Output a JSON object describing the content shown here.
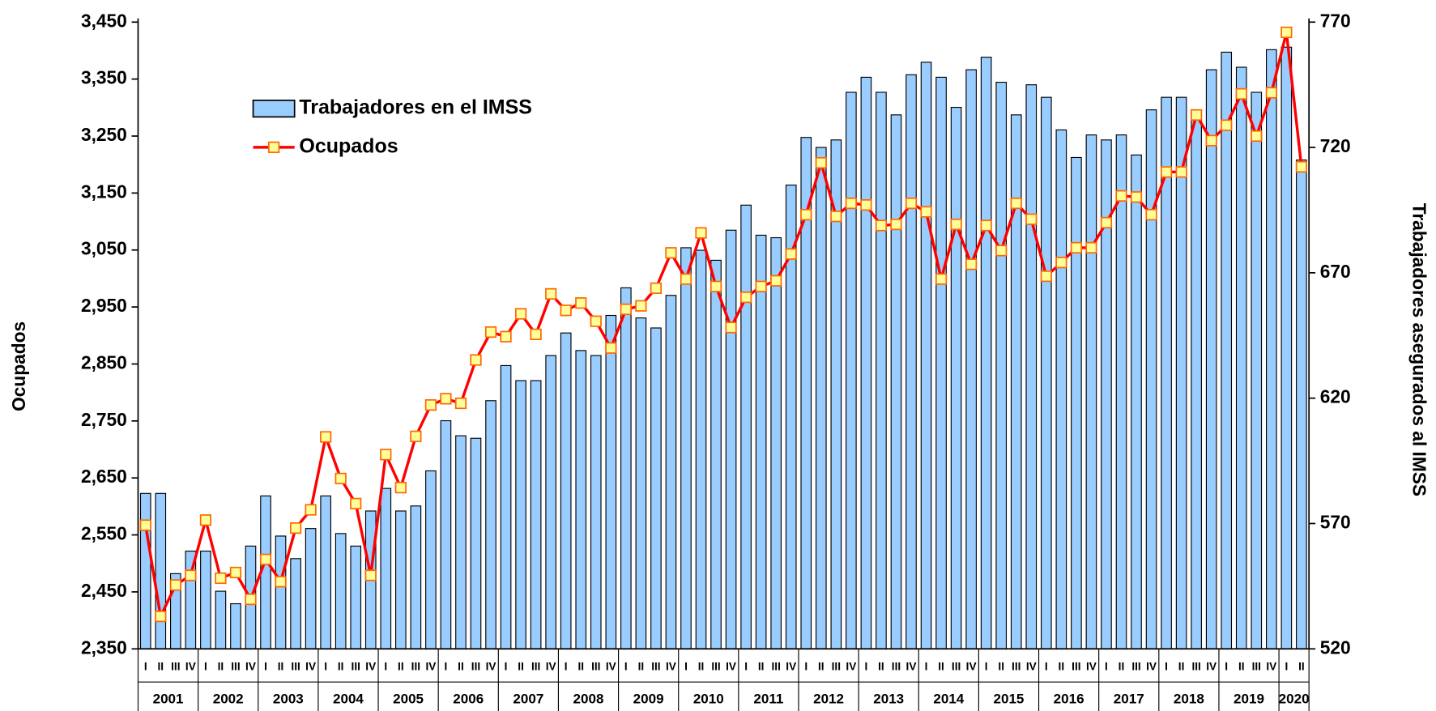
{
  "chart_data": {
    "type": "bar_line",
    "y_axis_label": "Ocupados",
    "y2_axis_label": "Trabajadores asegurados al IMSS",
    "legend": "upper left",
    "categories": [
      "I",
      "II",
      "III",
      "IV",
      "I",
      "II",
      "III",
      "IV",
      "I",
      "II",
      "III",
      "IV",
      "I",
      "II",
      "III",
      "IV",
      "I",
      "II",
      "III",
      "IV",
      "I",
      "II",
      "III",
      "IV",
      "I",
      "II",
      "III",
      "IV",
      "I",
      "II",
      "III",
      "IV",
      "I",
      "II",
      "III",
      "IV",
      "I",
      "II",
      "III",
      "IV",
      "I",
      "II",
      "III",
      "IV",
      "I",
      "II",
      "III",
      "IV",
      "I",
      "II",
      "III",
      "IV",
      "I",
      "II",
      "III",
      "IV",
      "I",
      "II",
      "III",
      "IV",
      "I",
      "II",
      "III",
      "IV",
      "I",
      "II",
      "III",
      "IV",
      "I",
      "II",
      "III",
      "IV",
      "I",
      "II",
      "III",
      "IV",
      "I",
      "II"
    ],
    "years": [
      "2001",
      "2002",
      "2003",
      "2004",
      "2005",
      "2006",
      "2007",
      "2008",
      "2009",
      "2010",
      "2011",
      "2012",
      "2013",
      "2014",
      "2015",
      "2016",
      "2017",
      "2018",
      "2019",
      "2020"
    ],
    "ylim": [
      2350,
      3450
    ],
    "yticks": [
      {
        "value": 2350,
        "label": "2,350"
      },
      {
        "value": 2450,
        "label": "2,450"
      },
      {
        "value": 2550,
        "label": "2,550"
      },
      {
        "value": 2650,
        "label": "2,650"
      },
      {
        "value": 2750,
        "label": "2,750"
      },
      {
        "value": 2850,
        "label": "2,850"
      },
      {
        "value": 2950,
        "label": "2,950"
      },
      {
        "value": 3050,
        "label": "3,050"
      },
      {
        "value": 3150,
        "label": "3,150"
      },
      {
        "value": 3250,
        "label": "3,250"
      },
      {
        "value": 3350,
        "label": "3,350"
      },
      {
        "value": 3450,
        "label": "3,450"
      }
    ],
    "y2lim": [
      520,
      770
    ],
    "y2ticks": [
      520,
      570,
      620,
      670,
      720,
      770
    ],
    "series": [
      {
        "name": "Trabajadores en el IMSS",
        "kind": "bar",
        "axis": "y2",
        "color": "#99ccff",
        "values": [
          582,
          582,
          550,
          559,
          559,
          543,
          538,
          561,
          581,
          565,
          556,
          568,
          581,
          566,
          561,
          575,
          584,
          575,
          577,
          591,
          611,
          605,
          604,
          619,
          633,
          627,
          627,
          637,
          646,
          639,
          637,
          653,
          664,
          652,
          648,
          661,
          680,
          679,
          675,
          687,
          697,
          685,
          684,
          705,
          724,
          720,
          723,
          742,
          748,
          742,
          733,
          749,
          754,
          748,
          736,
          751,
          756,
          746,
          733,
          745,
          740,
          727,
          716,
          725,
          723,
          725,
          717,
          735,
          740,
          740,
          735,
          751,
          758,
          752,
          742,
          759,
          760,
          715
        ]
      },
      {
        "name": "Ocupados",
        "kind": "line",
        "axis": "y",
        "color": "#ff0000",
        "values": [
          2567,
          2407,
          2462,
          2479,
          2576,
          2474,
          2484,
          2437,
          2507,
          2468,
          2562,
          2594,
          2722,
          2649,
          2605,
          2479,
          2691,
          2633,
          2723,
          2778,
          2789,
          2781,
          2857,
          2906,
          2898,
          2938,
          2902,
          2973,
          2944,
          2957,
          2925,
          2878,
          2946,
          2952,
          2983,
          3045,
          2999,
          3080,
          2986,
          2914,
          2967,
          2986,
          2996,
          3043,
          3112,
          3203,
          3109,
          3132,
          3129,
          3093,
          3095,
          3132,
          3117,
          2999,
          3095,
          3025,
          3093,
          3049,
          3132,
          3104,
          3004,
          3028,
          3054,
          3054,
          3098,
          3145,
          3143,
          3112,
          3187,
          3187,
          3287,
          3242,
          3269,
          3324,
          3250,
          3326,
          3432,
          3196
        ]
      }
    ]
  }
}
